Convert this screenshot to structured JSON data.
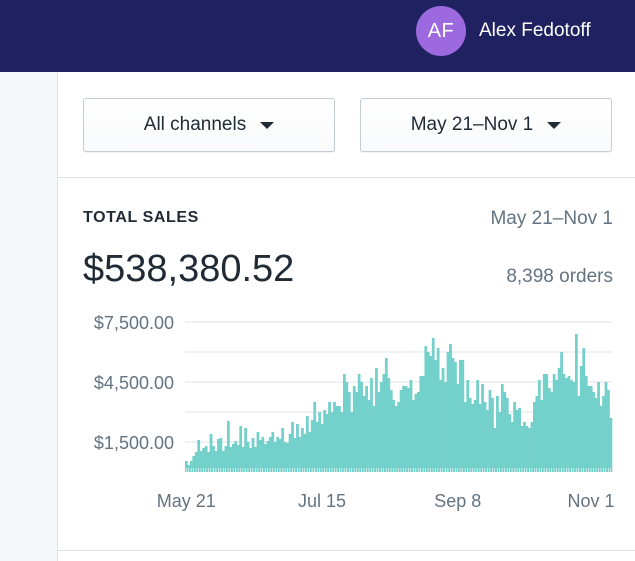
{
  "header": {
    "user": {
      "initials": "AF",
      "name": "Alex Fedotoff"
    }
  },
  "filters": {
    "channel": "All channels",
    "date_range": "May 21–Nov 1"
  },
  "card": {
    "title": "TOTAL SALES",
    "range": "May 21–Nov 1",
    "total": "$538,380.52",
    "orders": "8,398 orders"
  },
  "colors": {
    "bar": "#73d0cb",
    "header_bg": "#1f2160",
    "avatar": "#9c6ade"
  },
  "chart_data": {
    "type": "bar",
    "title": "TOTAL SALES",
    "xlabel": "",
    "ylabel": "",
    "ylim": [
      0,
      8200
    ],
    "y_ticks": [
      {
        "value": 7500,
        "label": "$7,500.00"
      },
      {
        "value": 4500,
        "label": "$4,500.00"
      },
      {
        "value": 1500,
        "label": "$1,500.00"
      }
    ],
    "x_ticks": [
      {
        "index": 0,
        "label": "May 21"
      },
      {
        "index": 55,
        "label": "Jul 15"
      },
      {
        "index": 110,
        "label": "Sep 8"
      },
      {
        "index": 164,
        "label": "Nov 1"
      }
    ],
    "grid": true,
    "legend": "none",
    "series": [
      {
        "values": [
          550,
          350,
          550,
          800,
          1000,
          1600,
          1050,
          1200,
          1300,
          1000,
          1900,
          1300,
          1050,
          1650,
          1700,
          1050,
          1300,
          2550,
          1250,
          1400,
          1550,
          1350,
          2300,
          1250,
          2200,
          1500,
          1200,
          1700,
          1250,
          2000,
          1600,
          1750,
          1400,
          1550,
          1750,
          2000,
          1500,
          1750,
          1650,
          2200,
          1500,
          1450,
          1900,
          2500,
          1700,
          2400,
          1750,
          2200,
          1900,
          2800,
          2000,
          2600,
          3500,
          2500,
          3000,
          2400,
          3100,
          2900,
          3500,
          3000,
          3500,
          3300,
          3300,
          3000,
          4900,
          4500,
          4000,
          3000,
          4300,
          4000,
          4900,
          4500,
          3800,
          4300,
          3600,
          4700,
          3300,
          5200,
          4000,
          4500,
          4900,
          5700,
          4700,
          4100,
          3600,
          3300,
          3500,
          4100,
          4300,
          4300,
          4200,
          4600,
          3600,
          3900,
          4000,
          4800,
          4800,
          6300,
          6000,
          5800,
          6700,
          5600,
          6200,
          4600,
          5200,
          4500,
          6000,
          6400,
          5700,
          5500,
          4400,
          5600,
          5600,
          3500,
          4600,
          3700,
          3400,
          3600,
          4600,
          3400,
          4400,
          3500,
          3100,
          4100,
          3700,
          2200,
          3800,
          3000,
          4400,
          4000,
          3700,
          2900,
          2500,
          3500,
          3100,
          3200,
          2300,
          2500,
          2300,
          2200,
          2500,
          3500,
          3800,
          4600,
          3600,
          4900,
          4900,
          4200,
          4000,
          4900,
          4600,
          5200,
          6000,
          4900,
          4700,
          4800,
          4600,
          4500,
          6900,
          3800,
          5300,
          6200,
          4800,
          4300,
          4300,
          4000,
          3700,
          4500,
          3300,
          3800,
          4500,
          4100,
          2700
        ]
      }
    ]
  }
}
